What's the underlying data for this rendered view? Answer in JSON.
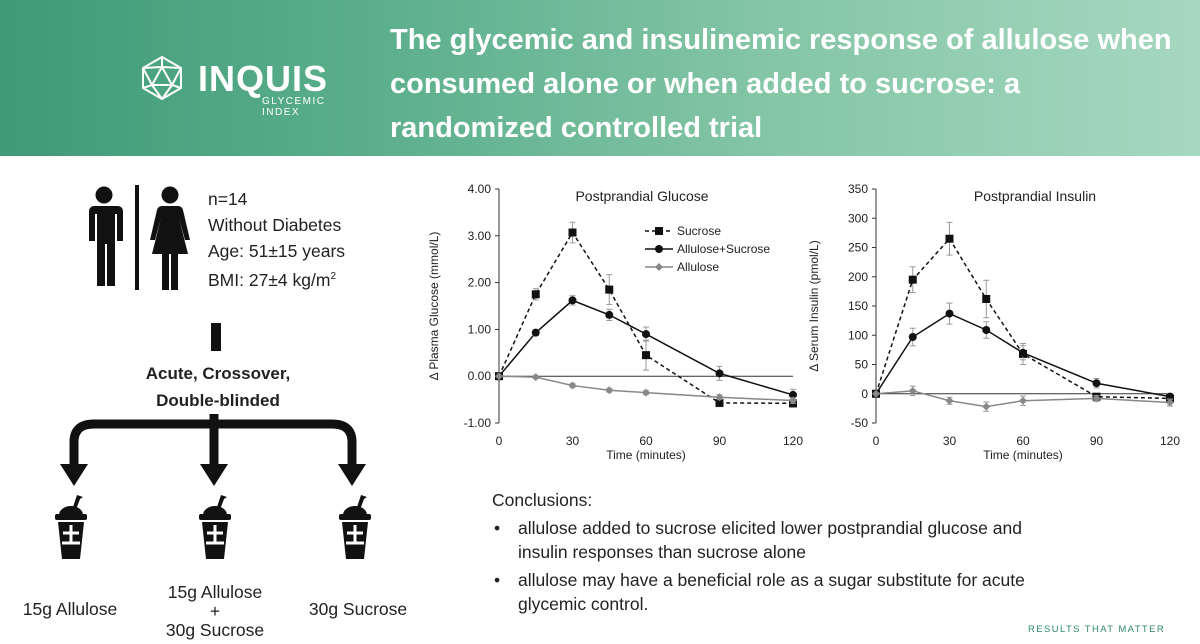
{
  "header": {
    "logo_word": "INQUIS",
    "logo_sub_1": "GLYCEMIC",
    "logo_sub_2": "INDEX",
    "title": "The glycemic and insulinemic response of allulose when consumed alone or when added to sucrose: a randomized controlled trial"
  },
  "participants": {
    "n": "n=14",
    "diabetes": "Without Diabetes",
    "age": "Age: 51±15 years",
    "bmi_prefix": "BMI: 27±4 kg/m",
    "bmi_sup": "2"
  },
  "design": {
    "line1": "Acute, Crossover,",
    "line2": "Double-blinded"
  },
  "arms": [
    {
      "line1": "15g Allulose"
    },
    {
      "line1": "15g Allulose",
      "line2": "+",
      "line3": "30g Sucrose"
    },
    {
      "line1": "30g Sucrose"
    }
  ],
  "colors": {
    "header_start": "#3f9a78",
    "header_end": "#a6d8bf",
    "footer": "#2e8a66"
  },
  "chart_data": [
    {
      "type": "line",
      "title": "Postprandial Glucose",
      "xlabel": "Time (minutes)",
      "ylabel": "Δ Plasma Glucose (mmol/L)",
      "x": [
        0,
        15,
        30,
        45,
        60,
        90,
        120
      ],
      "xticks": [
        "0",
        "30",
        "60",
        "90",
        "120"
      ],
      "xtick_values": [
        0,
        30,
        60,
        90,
        120
      ],
      "yticks": [
        "4.00",
        "3.00",
        "2.00",
        "1.00",
        "0.00",
        "-1.00"
      ],
      "ytick_values": [
        4,
        3,
        2,
        1,
        0,
        -1
      ],
      "ylim": [
        -1,
        4
      ],
      "xlim": [
        0,
        120
      ],
      "legend": "top-right",
      "series": [
        {
          "name": "Sucrose",
          "style": "dashed-square",
          "values": [
            0,
            1.75,
            3.07,
            1.85,
            0.45,
            -0.57,
            -0.58
          ],
          "errors": [
            0,
            0.12,
            0.22,
            0.32,
            0.32,
            0.08,
            0.08
          ]
        },
        {
          "name": "Allulose+Sucrose",
          "style": "solid-circle",
          "values": [
            0,
            0.93,
            1.62,
            1.31,
            0.9,
            0.06,
            -0.4
          ],
          "errors": [
            0,
            0.06,
            0.1,
            0.12,
            0.15,
            0.15,
            0.12
          ]
        },
        {
          "name": "Allulose",
          "style": "gray-diamond",
          "values": [
            0,
            -0.02,
            -0.2,
            -0.3,
            -0.35,
            -0.45,
            -0.52
          ],
          "errors": [
            0,
            0.03,
            0.04,
            0.04,
            0.04,
            0.05,
            0.06
          ]
        }
      ]
    },
    {
      "type": "line",
      "title": "Postprandial Insulin",
      "xlabel": "Time (minutes)",
      "ylabel": "Δ Serum Insulin (pmol/L)",
      "x": [
        0,
        15,
        30,
        45,
        60,
        90,
        120
      ],
      "xticks": [
        "0",
        "30",
        "60",
        "90",
        "120"
      ],
      "xtick_values": [
        0,
        30,
        60,
        90,
        120
      ],
      "yticks": [
        "350",
        "300",
        "250",
        "200",
        "150",
        "100",
        "50",
        "0",
        "-50"
      ],
      "ytick_values": [
        350,
        300,
        250,
        200,
        150,
        100,
        50,
        0,
        -50
      ],
      "ylim": [
        -50,
        350
      ],
      "xlim": [
        0,
        120
      ],
      "series": [
        {
          "name": "Sucrose",
          "style": "dashed-square",
          "values": [
            0,
            195,
            265,
            162,
            68,
            -5,
            -8
          ],
          "errors": [
            0,
            22,
            28,
            32,
            18,
            5,
            5
          ]
        },
        {
          "name": "Allulose+Sucrose",
          "style": "solid-circle",
          "values": [
            0,
            97,
            137,
            109,
            70,
            18,
            -5
          ],
          "errors": [
            0,
            15,
            18,
            14,
            12,
            8,
            5
          ]
        },
        {
          "name": "Allulose",
          "style": "gray-diamond",
          "values": [
            0,
            5,
            -12,
            -22,
            -12,
            -8,
            -15
          ],
          "errors": [
            0,
            8,
            6,
            8,
            8,
            5,
            6
          ]
        }
      ]
    }
  ],
  "conclusions": {
    "heading": "Conclusions:",
    "bullets": [
      "allulose added to sucrose elicited lower postprandial glucose and insulin responses than sucrose alone",
      "allulose may have a beneficial role as a sugar substitute for acute glycemic control."
    ]
  },
  "footer": "RESULTS THAT MATTER"
}
